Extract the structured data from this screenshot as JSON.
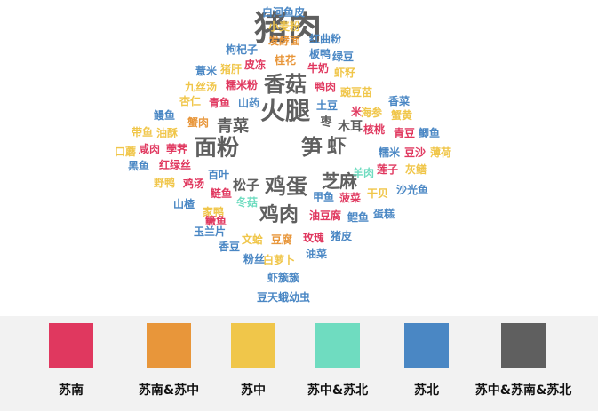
{
  "colors": {
    "south": "#e0385f",
    "south_central": "#e8963a",
    "central": "#f0c64a",
    "central_north": "#6fdcc0",
    "north": "#4a87c4",
    "all": "#5f5f5f"
  },
  "legend": [
    {
      "label": "苏南",
      "color_key": "south"
    },
    {
      "label": "苏南&苏中",
      "color_key": "south_central"
    },
    {
      "label": "苏中",
      "color_key": "central"
    },
    {
      "label": "苏中&苏北",
      "color_key": "central_north"
    },
    {
      "label": "苏北",
      "color_key": "north"
    },
    {
      "label": "苏中&苏南&苏北",
      "color_key": "all"
    }
  ],
  "words": [
    {
      "text": "猪肉",
      "color_key": "all"
    },
    {
      "text": "火腿",
      "color_key": "all"
    },
    {
      "text": "面粉",
      "color_key": "all"
    },
    {
      "text": "鸡蛋",
      "color_key": "all"
    },
    {
      "text": "鸡肉",
      "color_key": "all"
    },
    {
      "text": "香菇",
      "color_key": "all"
    },
    {
      "text": "笋",
      "color_key": "all"
    },
    {
      "text": "虾",
      "color_key": "all"
    },
    {
      "text": "芝麻",
      "color_key": "all"
    },
    {
      "text": "青菜",
      "color_key": "all"
    },
    {
      "text": "松子",
      "color_key": "all"
    },
    {
      "text": "木耳",
      "color_key": "all"
    },
    {
      "text": "枣",
      "color_key": "all"
    },
    {
      "text": "白河鱼皮",
      "color_key": "north"
    },
    {
      "text": "小麦粉",
      "color_key": "central"
    },
    {
      "text": "发酵面",
      "color_key": "south_central"
    },
    {
      "text": "枸杞子",
      "color_key": "north"
    },
    {
      "text": "红曲粉",
      "color_key": "north"
    },
    {
      "text": "板鸭",
      "color_key": "north"
    },
    {
      "text": "绿豆",
      "color_key": "north"
    },
    {
      "text": "薏米",
      "color_key": "north"
    },
    {
      "text": "猪肝",
      "color_key": "central"
    },
    {
      "text": "皮冻",
      "color_key": "south"
    },
    {
      "text": "桂花",
      "color_key": "south_central"
    },
    {
      "text": "牛奶",
      "color_key": "south"
    },
    {
      "text": "虾籽",
      "color_key": "central"
    },
    {
      "text": "九丝汤",
      "color_key": "central"
    },
    {
      "text": "糯米粉",
      "color_key": "south"
    },
    {
      "text": "鸭肉",
      "color_key": "south"
    },
    {
      "text": "豌豆苗",
      "color_key": "central"
    },
    {
      "text": "杏仁",
      "color_key": "central"
    },
    {
      "text": "青鱼",
      "color_key": "south"
    },
    {
      "text": "山药",
      "color_key": "north"
    },
    {
      "text": "土豆",
      "color_key": "north"
    },
    {
      "text": "香菜",
      "color_key": "north"
    },
    {
      "text": "鳗鱼",
      "color_key": "north"
    },
    {
      "text": "米",
      "color_key": "south"
    },
    {
      "text": "海参",
      "color_key": "central"
    },
    {
      "text": "蟹黄",
      "color_key": "central"
    },
    {
      "text": "蟹肉",
      "color_key": "south_central"
    },
    {
      "text": "核桃",
      "color_key": "south"
    },
    {
      "text": "青豆",
      "color_key": "south"
    },
    {
      "text": "带鱼",
      "color_key": "central"
    },
    {
      "text": "油酥",
      "color_key": "central"
    },
    {
      "text": "鲫鱼",
      "color_key": "north"
    },
    {
      "text": "口蘑",
      "color_key": "central"
    },
    {
      "text": "咸肉",
      "color_key": "south"
    },
    {
      "text": "荸荠",
      "color_key": "south"
    },
    {
      "text": "糯米",
      "color_key": "north"
    },
    {
      "text": "豆沙",
      "color_key": "south"
    },
    {
      "text": "薄荷",
      "color_key": "central"
    },
    {
      "text": "黑鱼",
      "color_key": "north"
    },
    {
      "text": "红绿丝",
      "color_key": "south"
    },
    {
      "text": "百叶",
      "color_key": "north"
    },
    {
      "text": "羊肉",
      "color_key": "central_north"
    },
    {
      "text": "莲子",
      "color_key": "south"
    },
    {
      "text": "灰鳝",
      "color_key": "central"
    },
    {
      "text": "野鸭",
      "color_key": "central"
    },
    {
      "text": "鸡汤",
      "color_key": "south"
    },
    {
      "text": "鲢鱼",
      "color_key": "south"
    },
    {
      "text": "甲鱼",
      "color_key": "north"
    },
    {
      "text": "菠菜",
      "color_key": "south"
    },
    {
      "text": "干贝",
      "color_key": "central"
    },
    {
      "text": "沙光鱼",
      "color_key": "north"
    },
    {
      "text": "山楂",
      "color_key": "north"
    },
    {
      "text": "冬菇",
      "color_key": "central_north"
    },
    {
      "text": "家鸭",
      "color_key": "central"
    },
    {
      "text": "鳜鱼",
      "color_key": "south"
    },
    {
      "text": "油豆腐",
      "color_key": "south"
    },
    {
      "text": "鲤鱼",
      "color_key": "north"
    },
    {
      "text": "蛋糕",
      "color_key": "north"
    },
    {
      "text": "玉兰片",
      "color_key": "north"
    },
    {
      "text": "文蛤",
      "color_key": "central"
    },
    {
      "text": "豆腐",
      "color_key": "south_central"
    },
    {
      "text": "玫瑰",
      "color_key": "south"
    },
    {
      "text": "猪皮",
      "color_key": "north"
    },
    {
      "text": "香豆",
      "color_key": "north"
    },
    {
      "text": "粉丝",
      "color_key": "north"
    },
    {
      "text": "白萝卜",
      "color_key": "central"
    },
    {
      "text": "油菜",
      "color_key": "north"
    },
    {
      "text": "虾簇簇",
      "color_key": "north"
    },
    {
      "text": "豆天蛾幼虫",
      "color_key": "north"
    }
  ]
}
